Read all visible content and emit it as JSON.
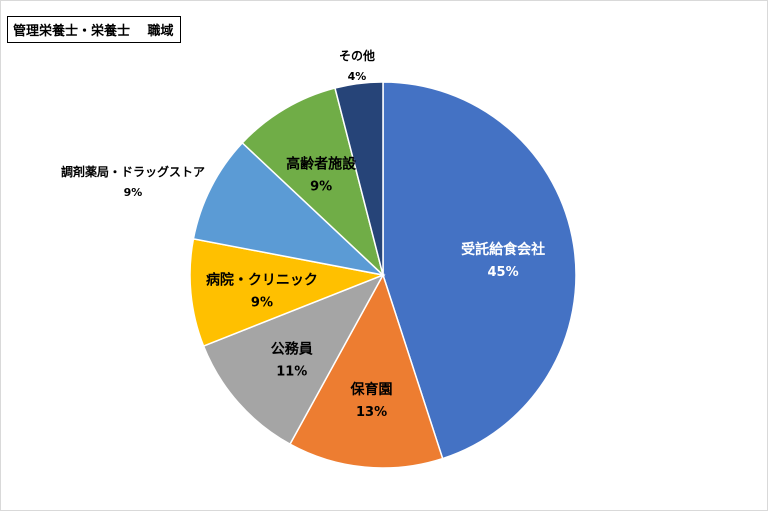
{
  "chart_data": {
    "type": "pie",
    "title": "管理栄養士・栄養士　 職域",
    "start_angle_deg": 0,
    "direction": "clockwise",
    "slices": [
      {
        "label": "受託給食会社",
        "value_label": "45%",
        "value": 45,
        "color": "#4472C4",
        "label_color": "#ffffff",
        "label_position": "inside"
      },
      {
        "label": "保育園",
        "value_label": "13%",
        "value": 13,
        "color": "#ED7D31",
        "label_color": "#000000",
        "label_position": "inside"
      },
      {
        "label": "公務員",
        "value_label": "11%",
        "value": 11,
        "color": "#A5A5A5",
        "label_color": "#000000",
        "label_position": "inside"
      },
      {
        "label": "病院・クリニック",
        "value_label": "9%",
        "value": 9,
        "color": "#FFC000",
        "label_color": "#000000",
        "label_position": "inside"
      },
      {
        "label": "調剤薬局・ドラッグストア",
        "value_label": "9%",
        "value": 9,
        "color": "#5B9BD5",
        "label_color": "#000000",
        "label_position": "outside"
      },
      {
        "label": "高齢者施設",
        "value_label": "9%",
        "value": 9,
        "color": "#70AD47",
        "label_color": "#000000",
        "label_position": "inside"
      },
      {
        "label": "その他",
        "value_label": "4%",
        "value": 4,
        "color": "#264478",
        "label_color": "#000000",
        "label_position": "outside"
      }
    ]
  }
}
